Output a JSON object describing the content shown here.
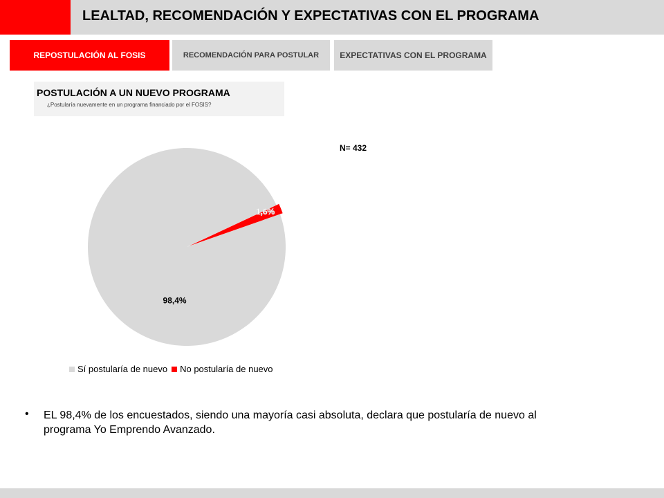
{
  "header": {
    "title": "LEALTAD, RECOMENDACIÓN Y EXPECTATIVAS CON EL PROGRAMA",
    "accent_color": "#ff0000"
  },
  "tabs": [
    {
      "label": "REPOSTULACIÓN AL FOSIS",
      "active": true
    },
    {
      "label": "RECOMENDACIÓN PARA POSTULAR",
      "active": false
    },
    {
      "label": "EXPECTATIVAS CON EL PROGRAMA",
      "active": false
    }
  ],
  "section": {
    "title": "POSTULACIÓN A UN NUEVO PROGRAMA",
    "question": "¿Postularía nuevamente en un programa financiado por el FOSIS?"
  },
  "sample_label": "N= 432",
  "chart_data": {
    "type": "pie",
    "slices": [
      {
        "name": "Sí postularía de nuevo",
        "value": 98.4,
        "label": "98,4%",
        "color": "#d9d9d9"
      },
      {
        "name": "No postularía de nuevo",
        "value": 1.6,
        "label": "1,6%",
        "color": "#ff0000"
      }
    ],
    "legend_position": "bottom"
  },
  "footnote": "EL 98,4% de los encuestados, siendo una mayoría casi absoluta, declara que postularía de nuevo al programa Yo Emprendo Avanzado.",
  "bullet_char": "•"
}
